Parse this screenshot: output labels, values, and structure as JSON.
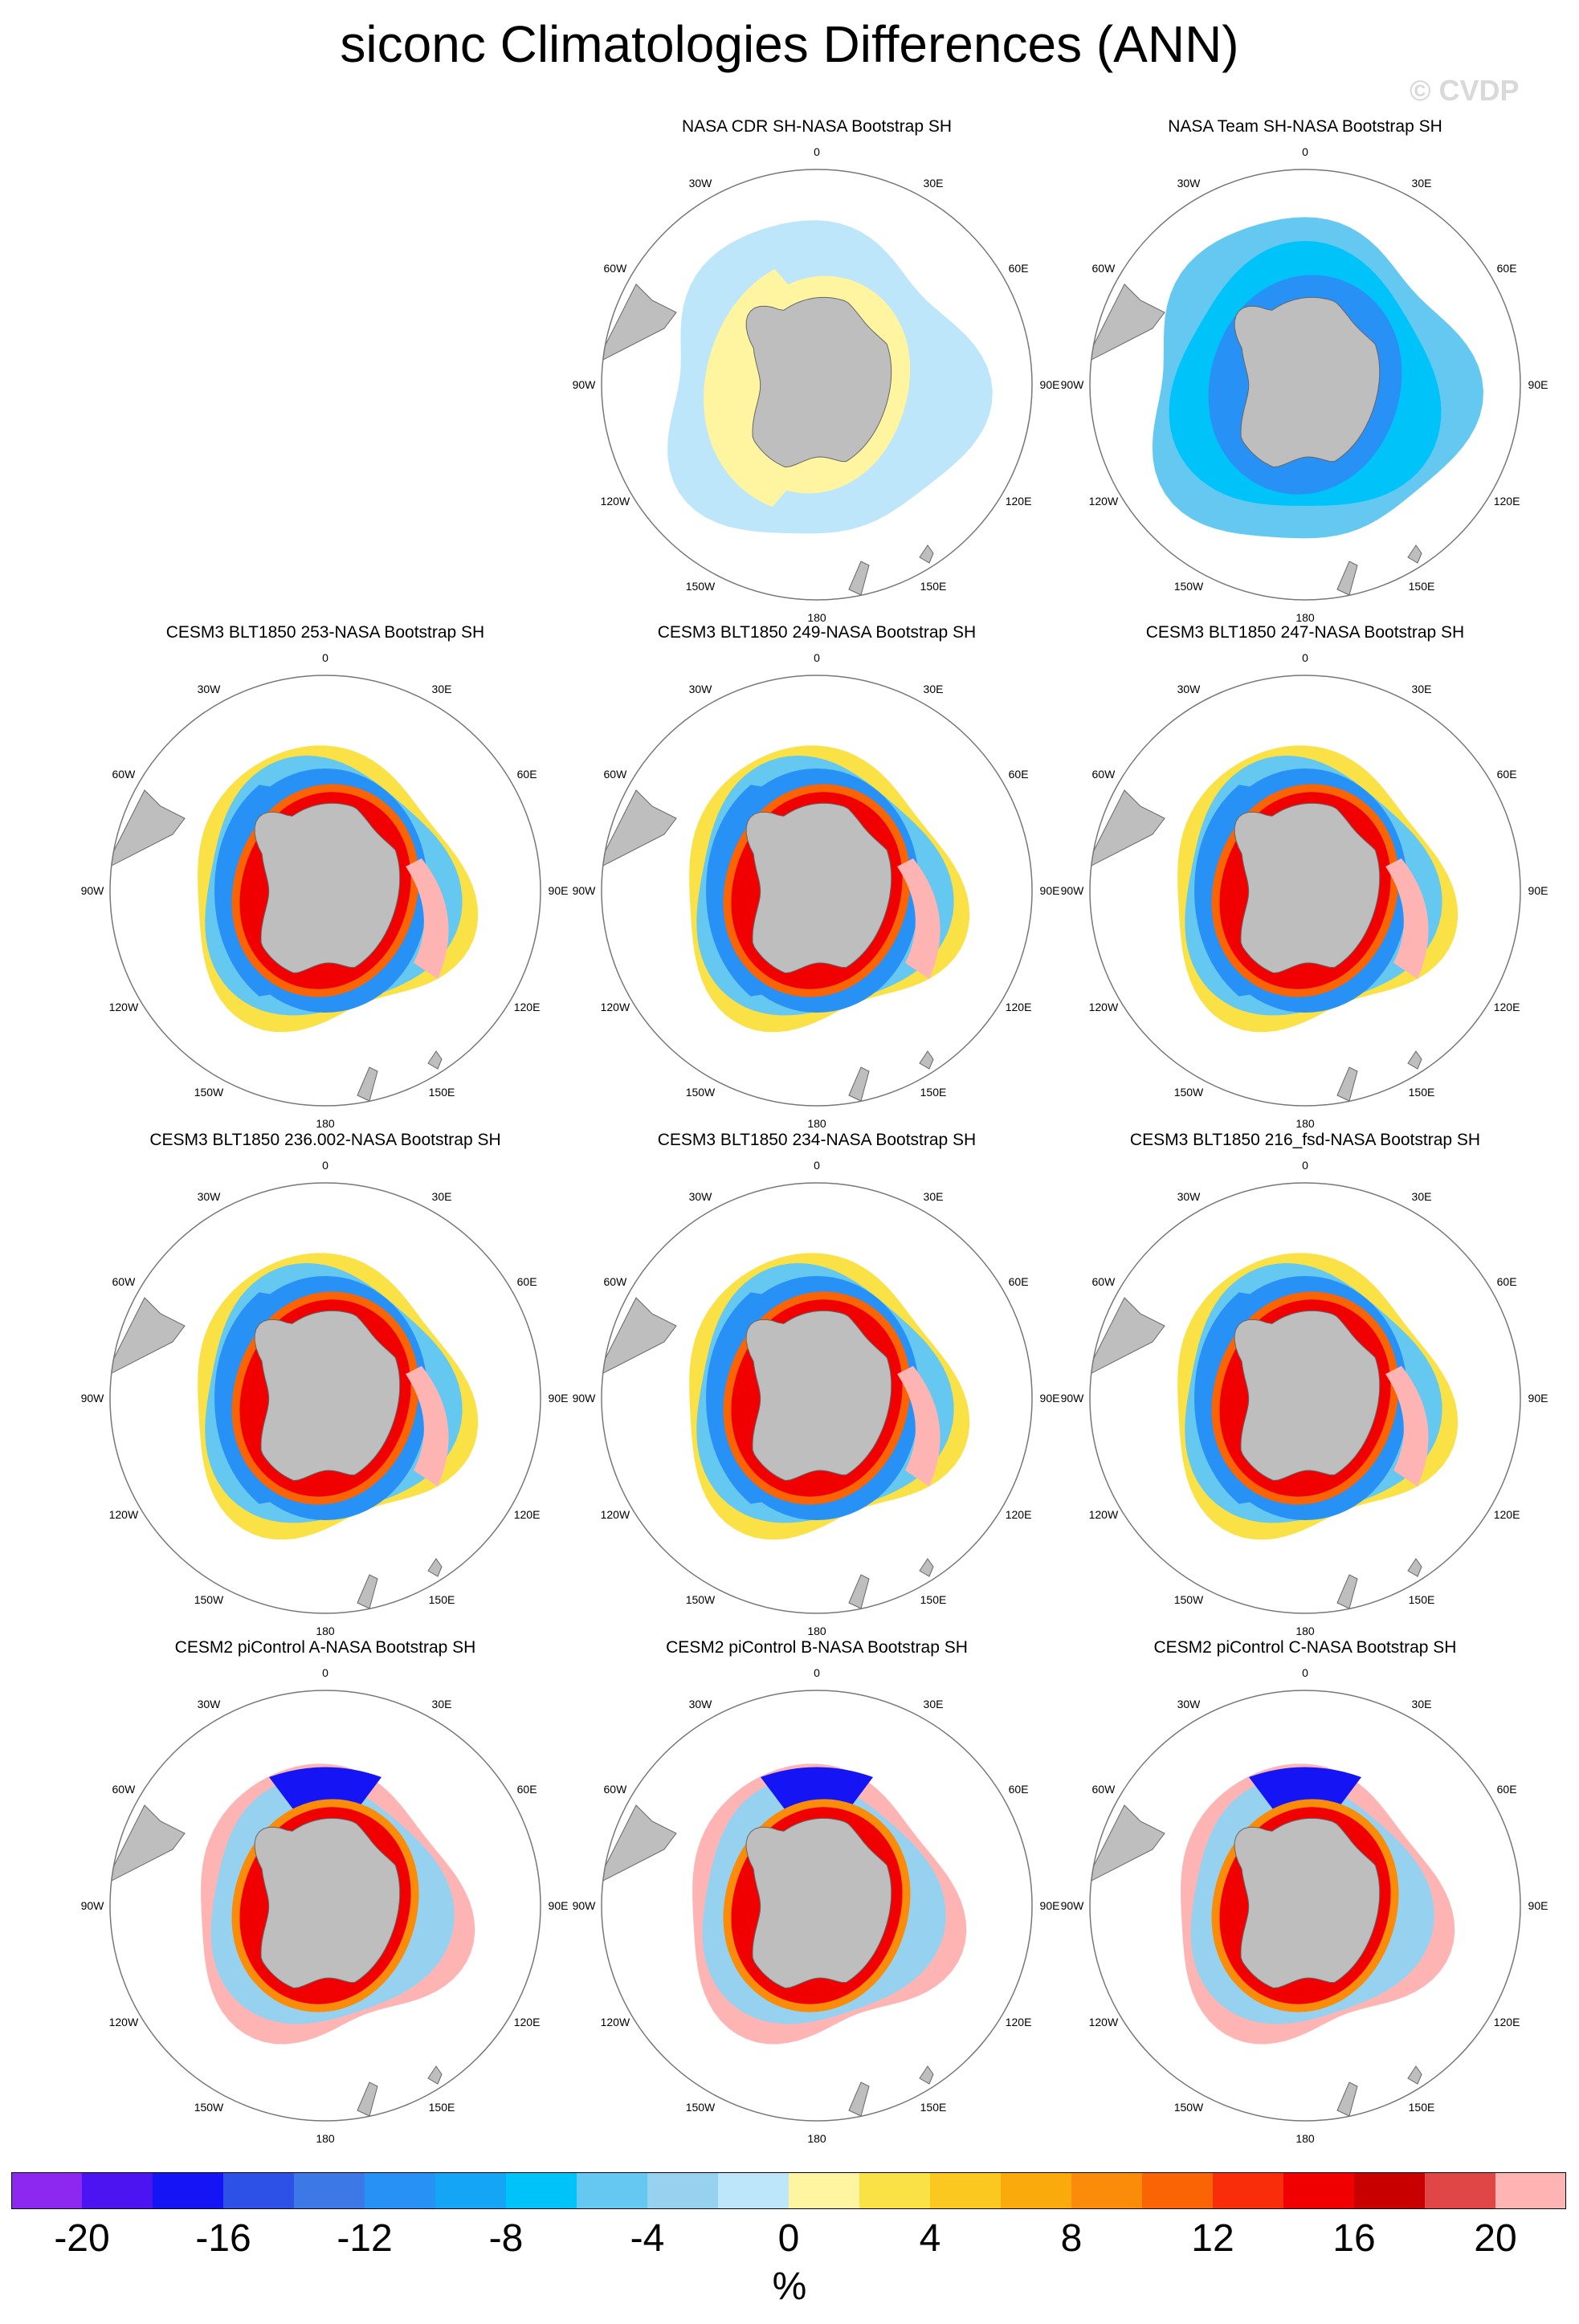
{
  "figure": {
    "title": "siconc Climatologies Differences (ANN)",
    "watermark": "© CVDP"
  },
  "lon_labels": [
    "0",
    "30E",
    "60E",
    "90E",
    "120E",
    "150E",
    "180",
    "150W",
    "120W",
    "90W",
    "60W",
    "30W"
  ],
  "panels": [
    {
      "title": "NASA CDR SH-NASA Bootstrap SH",
      "pattern": "cdr",
      "empty": false
    },
    {
      "title": "NASA Team SH-NASA Bootstrap SH",
      "pattern": "team",
      "empty": false
    },
    {
      "title": "CESM3 BLT1850 253-NASA Bootstrap SH",
      "pattern": "cesm3",
      "empty": false
    },
    {
      "title": "CESM3 BLT1850 249-NASA Bootstrap SH",
      "pattern": "cesm3",
      "empty": false
    },
    {
      "title": "CESM3 BLT1850 247-NASA Bootstrap SH",
      "pattern": "cesm3",
      "empty": false
    },
    {
      "title": "CESM3 BLT1850 236.002-NASA Bootstrap SH",
      "pattern": "cesm3",
      "empty": false
    },
    {
      "title": "CESM3 BLT1850 234-NASA Bootstrap SH",
      "pattern": "cesm3",
      "empty": false
    },
    {
      "title": "CESM3 BLT1850 216_fsd-NASA Bootstrap SH",
      "pattern": "cesm3",
      "empty": false
    },
    {
      "title": "CESM2 piControl A-NASA Bootstrap SH",
      "pattern": "cesm2",
      "empty": false
    },
    {
      "title": "CESM2 piControl B-NASA Bootstrap SH",
      "pattern": "cesm2",
      "empty": false
    },
    {
      "title": "CESM2 piControl C-NASA Bootstrap SH",
      "pattern": "cesm2",
      "empty": false
    }
  ],
  "colorbar": {
    "units": "%",
    "tick_labels": [
      "-20",
      "-16",
      "-12",
      "-8",
      "-4",
      "0",
      "4",
      "8",
      "12",
      "16",
      "20"
    ],
    "colors": [
      "#8c28f0",
      "#4b14f0",
      "#1414f5",
      "#2d50e6",
      "#3c78e6",
      "#2891f5",
      "#14a5f5",
      "#00c3fa",
      "#64c8f0",
      "#96d2f0",
      "#bee6fa",
      "#fff5a0",
      "#fae146",
      "#fac81e",
      "#faaa0a",
      "#fa8c0a",
      "#fa6405",
      "#fa2d0a",
      "#f00000",
      "#c80000",
      "#e14646",
      "#ffb4b4"
    ],
    "land_color": "#bebebe"
  },
  "chart_data": {
    "type": "heatmap",
    "title": "siconc Climatologies Differences (ANN)",
    "projection": "south polar stereographic",
    "units": "%",
    "levels": [
      -20,
      -18,
      -16,
      -14,
      -12,
      -10,
      -8,
      -6,
      -4,
      -2,
      0,
      2,
      4,
      6,
      8,
      10,
      12,
      14,
      16,
      18,
      20
    ],
    "panels": [
      {
        "name": "NASA CDR SH-NASA Bootstrap SH",
        "pattern": "cdr"
      },
      {
        "name": "NASA Team SH-NASA Bootstrap SH",
        "pattern": "team"
      },
      {
        "name": "CESM3 BLT1850 253-NASA Bootstrap SH",
        "pattern": "cesm3"
      },
      {
        "name": "CESM3 BLT1850 249-NASA Bootstrap SH",
        "pattern": "cesm3"
      },
      {
        "name": "CESM3 BLT1850 247-NASA Bootstrap SH",
        "pattern": "cesm3"
      },
      {
        "name": "CESM3 BLT1850 236.002-NASA Bootstrap SH",
        "pattern": "cesm3"
      },
      {
        "name": "CESM3 BLT1850 234-NASA Bootstrap SH",
        "pattern": "cesm3"
      },
      {
        "name": "CESM3 BLT1850 216_fsd-NASA Bootstrap SH",
        "pattern": "cesm3"
      },
      {
        "name": "CESM2 piControl A-NASA Bootstrap SH",
        "pattern": "cesm2"
      },
      {
        "name": "CESM2 piControl B-NASA Bootstrap SH",
        "pattern": "cesm2"
      },
      {
        "name": "CESM2 piControl C-NASA Bootstrap SH",
        "pattern": "cesm2"
      }
    ]
  }
}
